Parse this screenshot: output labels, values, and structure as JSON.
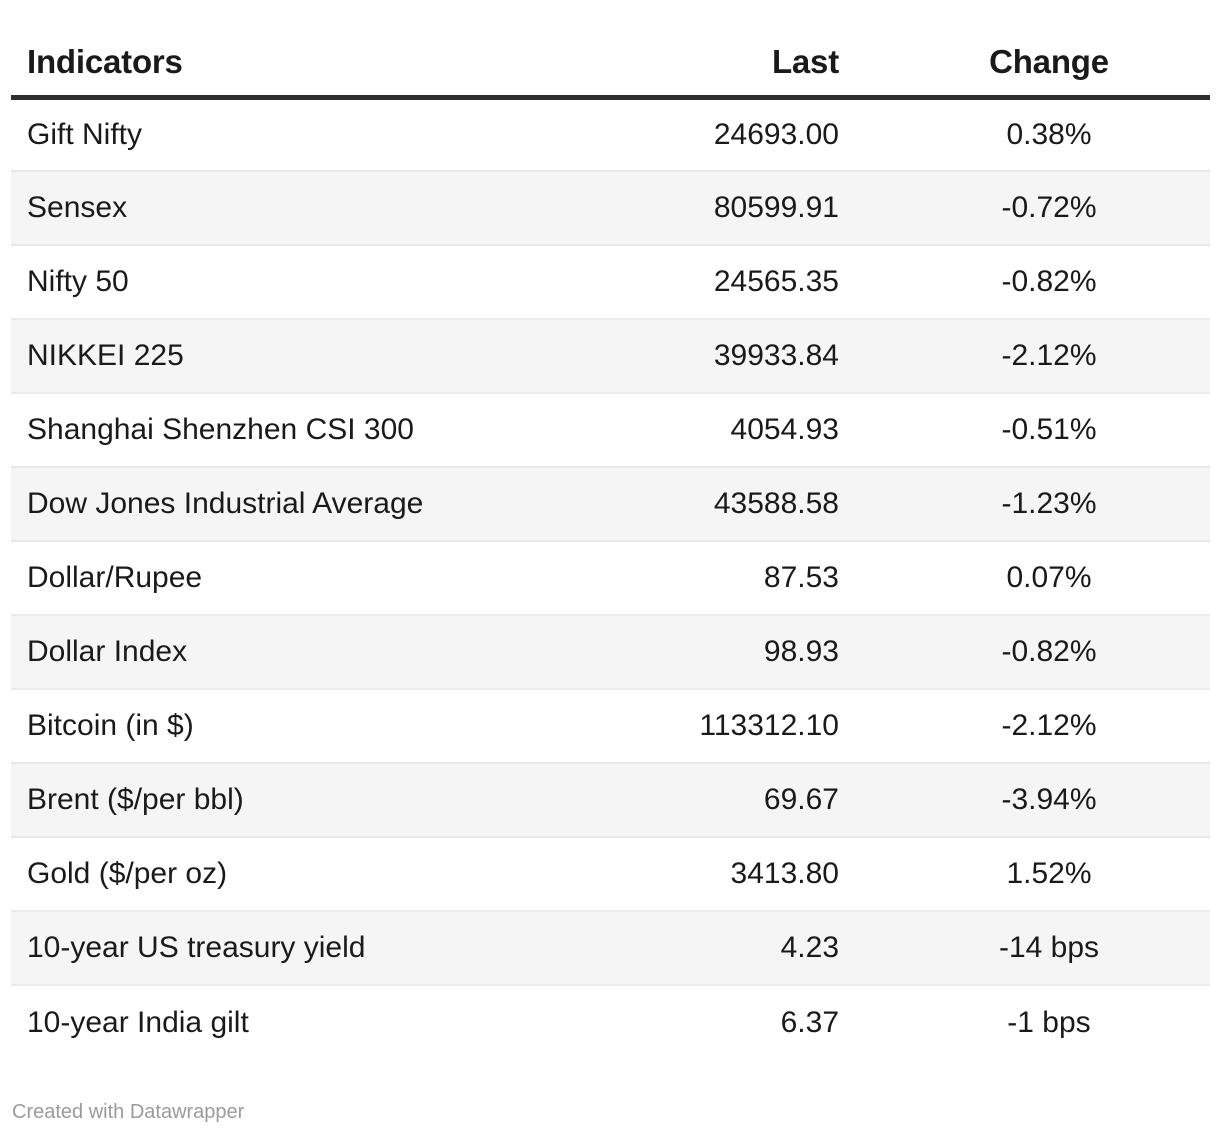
{
  "chart_data": {
    "type": "table",
    "columns": [
      "Indicators",
      "Last",
      "Change"
    ],
    "rows": [
      {
        "indicator": "Gift Nifty",
        "last": "24693.00",
        "change": "0.38%"
      },
      {
        "indicator": "Sensex",
        "last": "80599.91",
        "change": "-0.72%"
      },
      {
        "indicator": "Nifty 50",
        "last": "24565.35",
        "change": "-0.82%"
      },
      {
        "indicator": "NIKKEI 225",
        "last": "39933.84",
        "change": "-2.12%"
      },
      {
        "indicator": "Shanghai Shenzhen CSI 300",
        "last": "4054.93",
        "change": "-0.51%"
      },
      {
        "indicator": "Dow Jones Industrial Average",
        "last": "43588.58",
        "change": "-1.23%"
      },
      {
        "indicator": "Dollar/Rupee",
        "last": "87.53",
        "change": "0.07%"
      },
      {
        "indicator": "Dollar Index",
        "last": "98.93",
        "change": "-0.82%"
      },
      {
        "indicator": "Bitcoin (in $)",
        "last": "113312.10",
        "change": "-2.12%"
      },
      {
        "indicator": "Brent ($/per bbl)",
        "last": "69.67",
        "change": "-3.94%"
      },
      {
        "indicator": "Gold ($/per oz)",
        "last": "3413.80",
        "change": "1.52%"
      },
      {
        "indicator": "10-year US treasury yield",
        "last": "4.23",
        "change": "-14 bps"
      },
      {
        "indicator": "10-year India gilt",
        "last": "6.37",
        "change": "-1 bps"
      }
    ],
    "layout_hints": {
      "last_column_align": "right",
      "change_column_align": "center",
      "zebra_striping": true
    }
  },
  "footer": {
    "credit": "Created with Datawrapper"
  },
  "colors": {
    "header_rule": "#2e2e2e",
    "stripe": "#f5f5f6",
    "row_border": "#e9e9ea",
    "text": "#1a1a1a",
    "credit_text": "#9b9b9b",
    "background": "#ffffff"
  }
}
